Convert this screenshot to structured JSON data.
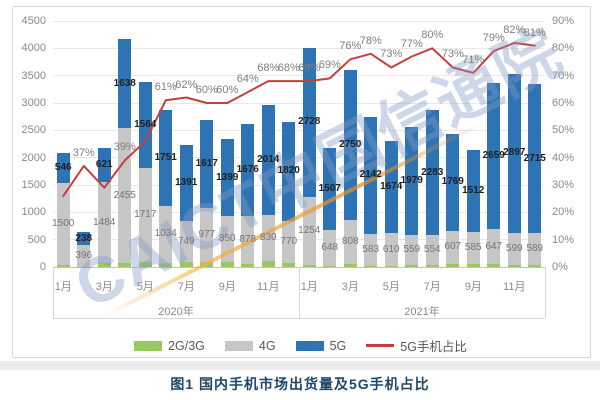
{
  "caption": {
    "text": "图1  国内手机市场出货量及5G手机占比"
  },
  "watermark": {
    "text": "CAICT中国信通院"
  },
  "chart_data": {
    "type": "bar",
    "subtype": "stacked-bars-with-line",
    "title": "图1 国内手机市场出货量及5G手机占比",
    "x_axis": {
      "groups": [
        {
          "year": "2020年",
          "tick_labels": [
            "1月",
            "3月",
            "5月",
            "7月",
            "9月",
            "11月"
          ]
        },
        {
          "year": "2021年",
          "tick_labels": [
            "1月",
            "3月",
            "5月",
            "7月",
            "9月",
            "11月"
          ]
        }
      ],
      "months_per_group": 12
    },
    "left_axis": {
      "ticks": [
        0,
        500,
        1000,
        1500,
        2000,
        2500,
        3000,
        3500,
        4000,
        4500
      ],
      "min": 0,
      "max": 4500
    },
    "right_axis": {
      "ticks": [
        "0%",
        "10%",
        "20%",
        "30%",
        "40%",
        "50%",
        "60%",
        "70%",
        "80%",
        "90%"
      ],
      "min": 0,
      "max": 90
    },
    "series": [
      {
        "name": "2G/3G",
        "type": "bar",
        "color": "#97c95c",
        "values_estimated": true,
        "show_labels": false,
        "values": [
          35,
          4,
          70,
          80,
          95,
          78,
          90,
          97,
          84,
          61,
          114,
          70,
          30,
          21,
          51,
          24,
          13,
          28,
          31,
          55,
          47,
          51,
          29,
          36
        ]
      },
      {
        "name": "4G",
        "type": "bar",
        "color": "#c6c6c6",
        "label_color": "#757575",
        "show_labels": true,
        "values": [
          1500,
          396,
          1484,
          2455,
          1717,
          1034,
          749,
          977,
          850,
          878,
          830,
          770,
          1254,
          648,
          808,
          583,
          610,
          559,
          554,
          607,
          585,
          647,
          599,
          589
        ]
      },
      {
        "name": "5G",
        "type": "bar",
        "color": "#2e74b5",
        "label_color": "#1f1f1f",
        "show_labels": true,
        "values": [
          546,
          238,
          621,
          1638,
          1564,
          1751,
          1391,
          1617,
          1399,
          1676,
          2014,
          1820,
          2728,
          1507,
          2750,
          2142,
          1674,
          1979,
          2283,
          1769,
          1512,
          2659,
          2897,
          2715
        ]
      },
      {
        "name": "5G手机占比",
        "type": "line",
        "axis": "right",
        "color": "#c5403c",
        "values": [
          26,
          37,
          29,
          39,
          46,
          61,
          62,
          60,
          60,
          64,
          68,
          68,
          68,
          69,
          76,
          78,
          73,
          77,
          80,
          73,
          71,
          79,
          82,
          81
        ],
        "label_suffix": "%",
        "hidden_label_indices": [
          0,
          2,
          4
        ]
      }
    ],
    "legend": [
      {
        "label": "2G/3G",
        "color": "#97c95c",
        "type": "bar"
      },
      {
        "label": "4G",
        "color": "#c6c6c6",
        "type": "bar"
      },
      {
        "label": "5G",
        "color": "#2e74b5",
        "type": "bar"
      },
      {
        "label": "5G手机占比",
        "color": "#c5403c",
        "type": "line"
      }
    ],
    "grid": "horizontal",
    "legend_position": "bottom"
  }
}
